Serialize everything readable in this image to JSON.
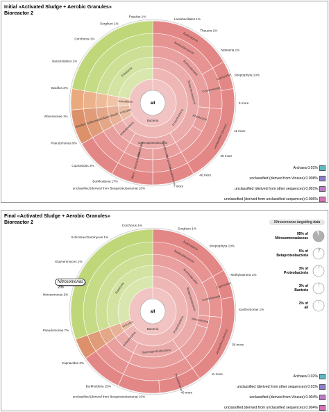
{
  "panels": [
    {
      "id": "initial",
      "title": "Initial «Activated Sludge + Aerobic Granules»",
      "subtitle": "Bioreactor 2",
      "legend": [
        {
          "name": "Archaea",
          "value": "0.01%",
          "color": "#5fb8c0"
        },
        {
          "name": "unclassified (derived from Viruses)",
          "value": "0.008%",
          "color": "#8a7fc8"
        },
        {
          "name": "unclassified (derived from other sequences)",
          "value": "0.001%",
          "color": "#b97bc6"
        },
        {
          "name": "unclassified (derived from unclassified sequences)",
          "value": "0.006%",
          "color": "#d472b5"
        }
      ]
    },
    {
      "id": "final",
      "title": "Final «Activated Sludge + Aerobic Granules»",
      "subtitle": "Bioreactor 2",
      "legend": [
        {
          "name": "Archaea",
          "value": "0.02%",
          "color": "#5fb8c0"
        },
        {
          "name": "unclassified (derived from other sequences)",
          "value": "0.01%",
          "color": "#8a7fc8"
        },
        {
          "name": "unclassified (derived from Viruses)",
          "value": "0.004%",
          "color": "#b97bc6"
        },
        {
          "name": "unclassified (derived from unclassified sequences)",
          "value": "0.004%",
          "color": "#d472b5"
        }
      ],
      "callout": {
        "name": "Nitrosomonas",
        "value": "2%"
      },
      "targeting": {
        "title": "Nitrosomonas targetting data",
        "items": [
          {
            "pct": "95% of",
            "name": "Nitrosomonadaceae",
            "fraction": 0.95
          },
          {
            "pct": "5% of",
            "name": "Betaproteobacteria",
            "fraction": 0.05
          },
          {
            "pct": "3% of",
            "name": "Proteobacteria",
            "fraction": 0.03
          },
          {
            "pct": "3% of",
            "name": "Bacteria",
            "fraction": 0.03
          },
          {
            "pct": "2% of",
            "name": "all",
            "fraction": 0.02
          }
        ]
      }
    }
  ],
  "chart_data": [
    {
      "type": "sunburst",
      "title": "Initial «Activated Sludge + Aerobic Granules» Bioreactor 2",
      "center": "all",
      "colors": {
        "proteobacteria": "#e07a78",
        "firmicutes": "#d9855a",
        "bacteroidetes": "#e8a070",
        "green": "#b9d36a",
        "other": "#d9d9a0"
      },
      "rings": [
        [
          {
            "label": "Bacteria",
            "start": 0,
            "span": 360,
            "group": "proteobacteria"
          }
        ],
        [
          {
            "label": "Proteobacteria",
            "start": 0,
            "span": 240,
            "group": "proteobacteria"
          },
          {
            "label": "Firmicutes",
            "start": 240,
            "span": 25,
            "group": "firmicutes"
          },
          {
            "label": "Bacteroidetes",
            "start": 265,
            "span": 15,
            "group": "bacteroidetes"
          },
          {
            "label": "",
            "start": 280,
            "span": 80,
            "group": "green"
          }
        ],
        [
          {
            "label": "Betaproteobacteria",
            "start": 0,
            "span": 150,
            "group": "proteobacteria"
          },
          {
            "label": "Gammaproteobacteria",
            "start": 150,
            "span": 60,
            "group": "proteobacteria"
          },
          {
            "label": "Alphaproteobacteria",
            "start": 210,
            "span": 30,
            "group": "proteobacteria"
          },
          {
            "label": "Bacilli",
            "start": 240,
            "span": 25,
            "group": "firmicutes"
          },
          {
            "label": "",
            "start": 265,
            "span": 15,
            "group": "bacteroidetes"
          },
          {
            "label": "Eukaryota",
            "start": 280,
            "span": 80,
            "group": "green"
          }
        ],
        [
          {
            "label": "Burkholderiales",
            "start": 0,
            "span": 95,
            "group": "proteobacteria"
          },
          {
            "label": "Rhodocyclales",
            "start": 95,
            "span": 25,
            "group": "proteobacteria"
          },
          {
            "label": "",
            "start": 120,
            "span": 30,
            "group": "proteobacteria"
          },
          {
            "label": "Pseudomonadales",
            "start": 150,
            "span": 30,
            "group": "proteobacteria"
          },
          {
            "label": "Enterobacteriales",
            "start": 180,
            "span": 30,
            "group": "proteobacteria"
          },
          {
            "label": "",
            "start": 210,
            "span": 30,
            "group": "proteobacteria"
          },
          {
            "label": "Bacillales",
            "start": 240,
            "span": 25,
            "group": "firmicutes"
          },
          {
            "label": "",
            "start": 265,
            "span": 15,
            "group": "bacteroidetes"
          },
          {
            "label": "",
            "start": 280,
            "span": 80,
            "group": "green"
          }
        ],
        [
          {
            "label": "Burkholderiaceae",
            "start": 0,
            "span": 60,
            "group": "proteobacteria"
          },
          {
            "label": "Comamonadaceae",
            "start": 60,
            "span": 35,
            "group": "proteobacteria"
          },
          {
            "label": "",
            "start": 95,
            "span": 55,
            "group": "proteobacteria"
          },
          {
            "label": "Moraxellaceae",
            "start": 150,
            "span": 30,
            "group": "proteobacteria"
          },
          {
            "label": "Enterobacteriaceae",
            "start": 180,
            "span": 30,
            "group": "proteobacteria"
          },
          {
            "label": "",
            "start": 210,
            "span": 30,
            "group": "proteobacteria"
          },
          {
            "label": "Bacillaceae",
            "start": 240,
            "span": 25,
            "group": "firmicutes"
          },
          {
            "label": "",
            "start": 265,
            "span": 15,
            "group": "bacteroidetes"
          },
          {
            "label": "",
            "start": 280,
            "span": 80,
            "group": "green"
          }
        ],
        [
          {
            "label": "Burkholderia",
            "start": 0,
            "span": 60,
            "group": "proteobacteria"
          },
          {
            "label": "Cupriavidus",
            "start": 60,
            "span": 20,
            "group": "proteobacteria"
          },
          {
            "label": "unclassified (derived from Betaproteobacteria)",
            "start": 80,
            "span": 70,
            "group": "proteobacteria"
          },
          {
            "label": "Pseudomonas",
            "start": 150,
            "span": 30,
            "group": "proteobacteria"
          },
          {
            "label": "Vibrio",
            "start": 180,
            "span": 30,
            "group": "proteobacteria"
          },
          {
            "label": "",
            "start": 210,
            "span": 30,
            "group": "proteobacteria"
          },
          {
            "label": "Bacillus",
            "start": 240,
            "span": 25,
            "group": "firmicutes"
          },
          {
            "label": "",
            "start": 265,
            "span": 15,
            "group": "bacteroidetes"
          },
          {
            "label": "",
            "start": 280,
            "span": 80,
            "group": "green"
          }
        ]
      ],
      "labels": [
        {
          "text": "unclassified (derived from Betaproteobacteria)",
          "value": "10%"
        },
        {
          "text": "Burkholderia",
          "value": "17%"
        },
        {
          "text": "Cupriavidus",
          "value": "3%"
        },
        {
          "text": "Pseudomonas",
          "value": "9%"
        },
        {
          "text": "Vibrionaceae",
          "value": "1%"
        },
        {
          "text": "Bacillus",
          "value": "3%"
        },
        {
          "text": "Bacteroidetes",
          "value": "1%"
        },
        {
          "text": "Corchorus",
          "value": "1%"
        },
        {
          "text": "Sorghum",
          "value": "1%"
        },
        {
          "text": "Populus",
          "value": "1%"
        },
        {
          "text": "Lactobacillales",
          "value": "1%"
        },
        {
          "text": "Thauera",
          "value": "1%"
        },
        {
          "text": "Neisseria",
          "value": "1%"
        },
        {
          "text": "Streptophyta",
          "value": "10%"
        },
        {
          "text": "5 more",
          "value": ""
        },
        {
          "text": "11 more",
          "value": ""
        },
        {
          "text": "25 more",
          "value": ""
        },
        {
          "text": "40 more",
          "value": ""
        },
        {
          "text": "7 more",
          "value": ""
        }
      ]
    },
    {
      "type": "sunburst",
      "title": "Final «Activated Sludge + Aerobic Granules» Bioreactor 2",
      "center": "all",
      "colors": {
        "proteobacteria": "#e07a78",
        "firmicutes": "#d9855a",
        "bacteroidetes": "#e8a070",
        "green": "#b9d36a",
        "other": "#d9d9a0"
      },
      "rings": [
        [
          {
            "label": "Bacteria",
            "start": 0,
            "span": 360,
            "group": "proteobacteria"
          }
        ],
        [
          {
            "label": "Proteobacteria",
            "start": 0,
            "span": 235,
            "group": "proteobacteria"
          },
          {
            "label": "Firmicutes",
            "start": 235,
            "span": 15,
            "group": "firmicutes"
          },
          {
            "label": "",
            "start": 250,
            "span": 110,
            "group": "green"
          }
        ],
        [
          {
            "label": "Betaproteobacteria",
            "start": 0,
            "span": 145,
            "group": "proteobacteria"
          },
          {
            "label": "Gammaproteobacteria",
            "start": 145,
            "span": 60,
            "group": "proteobacteria"
          },
          {
            "label": "Alphaproteobacteria",
            "start": 205,
            "span": 30,
            "group": "proteobacteria"
          },
          {
            "label": "",
            "start": 235,
            "span": 15,
            "group": "firmicutes"
          },
          {
            "label": "Eukaryota",
            "start": 250,
            "span": 110,
            "group": "green"
          }
        ],
        [
          {
            "label": "Burkholderiales",
            "start": 0,
            "span": 95,
            "group": "proteobacteria"
          },
          {
            "label": "Nitrosomonadales",
            "start": 95,
            "span": 12,
            "group": "proteobacteria"
          },
          {
            "label": "",
            "start": 107,
            "span": 38,
            "group": "proteobacteria"
          },
          {
            "label": "",
            "start": 145,
            "span": 60,
            "group": "proteobacteria"
          },
          {
            "label": "",
            "start": 205,
            "span": 30,
            "group": "proteobacteria"
          },
          {
            "label": "",
            "start": 235,
            "span": 15,
            "group": "firmicutes"
          },
          {
            "label": "",
            "start": 250,
            "span": 110,
            "group": "green"
          }
        ],
        [
          {
            "label": "Burkholderiaceae",
            "start": 0,
            "span": 60,
            "group": "proteobacteria"
          },
          {
            "label": "Comamonadaceae",
            "start": 60,
            "span": 35,
            "group": "proteobacteria"
          },
          {
            "label": "",
            "start": 95,
            "span": 50,
            "group": "proteobacteria"
          },
          {
            "label": "",
            "start": 145,
            "span": 60,
            "group": "proteobacteria"
          },
          {
            "label": "",
            "start": 205,
            "span": 30,
            "group": "proteobacteria"
          },
          {
            "label": "",
            "start": 235,
            "span": 15,
            "group": "firmicutes"
          },
          {
            "label": "",
            "start": 250,
            "span": 110,
            "group": "green"
          }
        ],
        [
          {
            "label": "Burkholderia",
            "start": 0,
            "span": 60,
            "group": "proteobacteria"
          },
          {
            "label": "Cupriavidus",
            "start": 60,
            "span": 20,
            "group": "proteobacteria"
          },
          {
            "label": "unclassified (derived from Betaproteobacteria)",
            "start": 80,
            "span": 65,
            "group": "proteobacteria"
          },
          {
            "label": "Pseudomonas",
            "start": 145,
            "span": 30,
            "group": "proteobacteria"
          },
          {
            "label": "",
            "start": 175,
            "span": 30,
            "group": "proteobacteria"
          },
          {
            "label": "",
            "start": 205,
            "span": 30,
            "group": "proteobacteria"
          },
          {
            "label": "",
            "start": 235,
            "span": 15,
            "group": "firmicutes"
          },
          {
            "label": "",
            "start": 250,
            "span": 110,
            "group": "green"
          }
        ]
      ],
      "labels": [
        {
          "text": "unclassified (derived from Betaproteobacteria)",
          "value": "10%"
        },
        {
          "text": "Burkholderia",
          "value": "15%"
        },
        {
          "text": "Cupriavidus",
          "value": "3%"
        },
        {
          "text": "Pseudomonas",
          "value": "7%"
        },
        {
          "text": "Nitrosomonas",
          "value": "2%"
        },
        {
          "text": "Kluyveromyces",
          "value": "1%"
        },
        {
          "text": "Schizosaccharomyces",
          "value": "1%"
        },
        {
          "text": "Corchorus",
          "value": "1%"
        },
        {
          "text": "Sorghum",
          "value": "1%"
        },
        {
          "text": "Streptophyta",
          "value": "10%"
        },
        {
          "text": "Methylotenera",
          "value": "1%"
        },
        {
          "text": "Xanthomonas",
          "value": "1%"
        },
        {
          "text": "30 more",
          "value": ""
        },
        {
          "text": "11 more",
          "value": ""
        },
        {
          "text": "40 more",
          "value": ""
        }
      ]
    }
  ]
}
